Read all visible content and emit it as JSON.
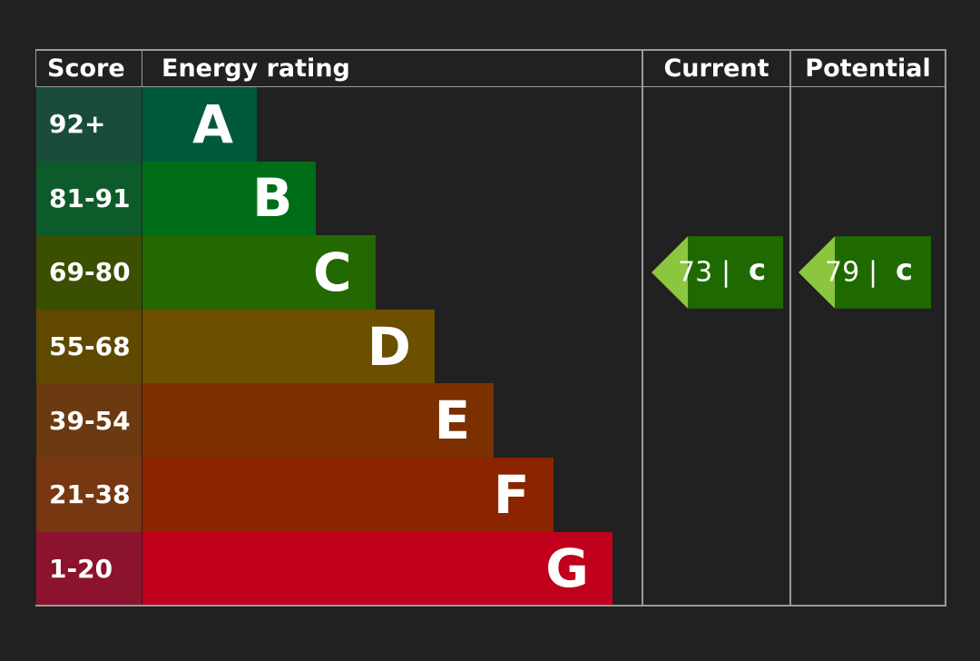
{
  "header": {
    "score": "Score",
    "rating": "Energy rating",
    "current": "Current",
    "potential": "Potential"
  },
  "rows": [
    {
      "score": "92+",
      "letter": "A",
      "color": "#005a3a",
      "score_color": "#1a4c3a"
    },
    {
      "score": "81-91",
      "letter": "B",
      "color": "#006e18",
      "score_color": "#0d5a2a"
    },
    {
      "score": "69-80",
      "letter": "C",
      "color": "#236800",
      "score_color": "#3a4f00"
    },
    {
      "score": "55-68",
      "letter": "D",
      "color": "#6d4f00",
      "score_color": "#614800"
    },
    {
      "score": "39-54",
      "letter": "E",
      "color": "#7c3000",
      "score_color": "#6b3a10"
    },
    {
      "score": "21-38",
      "letter": "F",
      "color": "#8c2400",
      "score_color": "#773711"
    },
    {
      "score": "1-20",
      "letter": "G",
      "color": "#c0001c",
      "score_color": "#8c132e"
    }
  ],
  "current": {
    "score": 73,
    "separator": "|",
    "letter": "c"
  },
  "potential": {
    "score": 79,
    "separator": "|",
    "letter": "c"
  },
  "arrow_color": "#1f6a00",
  "arrow_tip_color": "#8cc63f"
}
